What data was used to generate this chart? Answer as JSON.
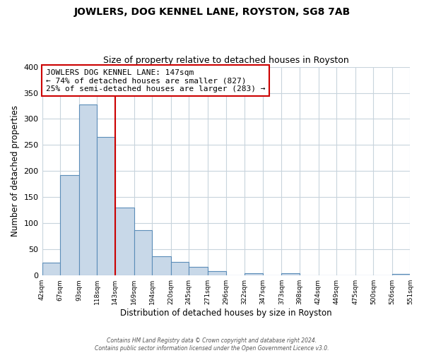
{
  "title": "JOWLERS, DOG KENNEL LANE, ROYSTON, SG8 7AB",
  "subtitle": "Size of property relative to detached houses in Royston",
  "xlabel": "Distribution of detached houses by size in Royston",
  "ylabel": "Number of detached properties",
  "bar_edges": [
    42,
    67,
    93,
    118,
    143,
    169,
    194,
    220,
    245,
    271,
    296,
    322,
    347,
    373,
    398,
    424,
    449,
    475,
    500,
    526,
    551
  ],
  "bar_heights": [
    25,
    193,
    328,
    265,
    130,
    87,
    37,
    26,
    17,
    8,
    0,
    5,
    0,
    5,
    0,
    0,
    0,
    0,
    0,
    3
  ],
  "bar_color": "#c8d8e8",
  "bar_edgecolor": "#5b8db8",
  "vline_x": 143,
  "vline_color": "#cc0000",
  "annotation_text": "JOWLERS DOG KENNEL LANE: 147sqm\n← 74% of detached houses are smaller (827)\n25% of semi-detached houses are larger (283) →",
  "annotation_box_edgecolor": "#cc0000",
  "annotation_box_facecolor": "#ffffff",
  "ylim": [
    0,
    400
  ],
  "yticks": [
    0,
    50,
    100,
    150,
    200,
    250,
    300,
    350,
    400
  ],
  "tick_labels": [
    "42sqm",
    "67sqm",
    "93sqm",
    "118sqm",
    "143sqm",
    "169sqm",
    "194sqm",
    "220sqm",
    "245sqm",
    "271sqm",
    "296sqm",
    "322sqm",
    "347sqm",
    "373sqm",
    "398sqm",
    "424sqm",
    "449sqm",
    "475sqm",
    "500sqm",
    "526sqm",
    "551sqm"
  ],
  "footer_line1": "Contains HM Land Registry data © Crown copyright and database right 2024.",
  "footer_line2": "Contains public sector information licensed under the Open Government Licence v3.0.",
  "background_color": "#ffffff",
  "grid_color": "#c8d4dc"
}
